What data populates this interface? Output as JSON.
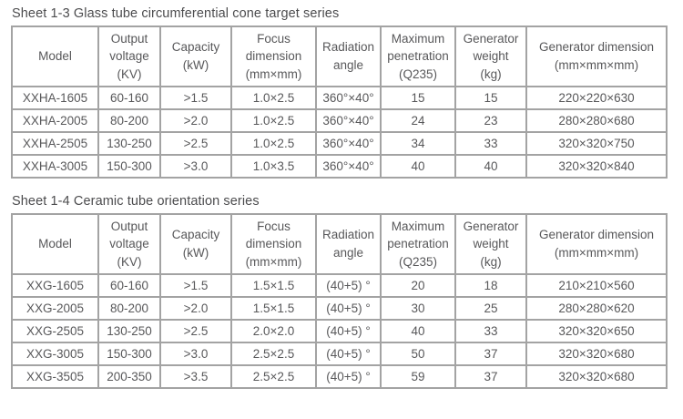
{
  "colors": {
    "border": "#a3a3a3",
    "text": "#58585a",
    "title": "#4c4c4e",
    "background": "#ffffff"
  },
  "tables": [
    {
      "title": "Sheet 1-3 Glass tube circumferential cone target series",
      "columns": [
        "Model",
        "Output\nvoltage\n(KV)",
        "Capacity\n(kW)",
        "Focus\ndimension\n(mm×mm)",
        "Radiation\nangle",
        "Maximum\npenetration\n(Q235)",
        "Generator\nweight\n(kg)",
        "Generator dimension\n(mm×mm×mm)"
      ],
      "rows": [
        [
          "XXHA-1605",
          "60-160",
          ">1.5",
          "1.0×2.5",
          "360°×40°",
          "15",
          "15",
          "220×220×630"
        ],
        [
          "XXHA-2005",
          "80-200",
          ">2.0",
          "1.0×2.5",
          "360°×40°",
          "24",
          "23",
          "280×280×680"
        ],
        [
          "XXHA-2505",
          "130-250",
          ">2.5",
          "1.0×2.5",
          "360°×40°",
          "34",
          "33",
          "320×320×750"
        ],
        [
          "XXHA-3005",
          "150-300",
          ">3.0",
          "1.0×3.5",
          "360°×40°",
          "40",
          "40",
          "320×320×840"
        ]
      ]
    },
    {
      "title": "Sheet 1-4 Ceramic tube orientation series",
      "columns": [
        "Model",
        "Output\nvoltage\n(KV)",
        "Capacity\n(kW)",
        "Focus\ndimension\n(mm×mm)",
        "Radiation\nangle",
        "Maximum\npenetration\n(Q235)",
        "Generator\nweight\n(kg)",
        "Generator dimension\n(mm×mm×mm)"
      ],
      "rows": [
        [
          "XXG-1605",
          "60-160",
          ">1.5",
          "1.5×1.5",
          "(40+5) °",
          "20",
          "18",
          "210×210×560"
        ],
        [
          "XXG-2005",
          "80-200",
          ">2.0",
          "1.5×1.5",
          "(40+5) °",
          "30",
          "25",
          "280×280×620"
        ],
        [
          "XXG-2505",
          "130-250",
          ">2.5",
          "2.0×2.0",
          "(40+5) °",
          "40",
          "33",
          "320×320×650"
        ],
        [
          "XXG-3005",
          "150-300",
          ">3.0",
          "2.5×2.5",
          "(40+5) °",
          "50",
          "37",
          "320×320×680"
        ],
        [
          "XXG-3505",
          "200-350",
          ">3.5",
          "2.5×2.5",
          "(40+5) °",
          "59",
          "37",
          "320×320×680"
        ]
      ]
    }
  ]
}
